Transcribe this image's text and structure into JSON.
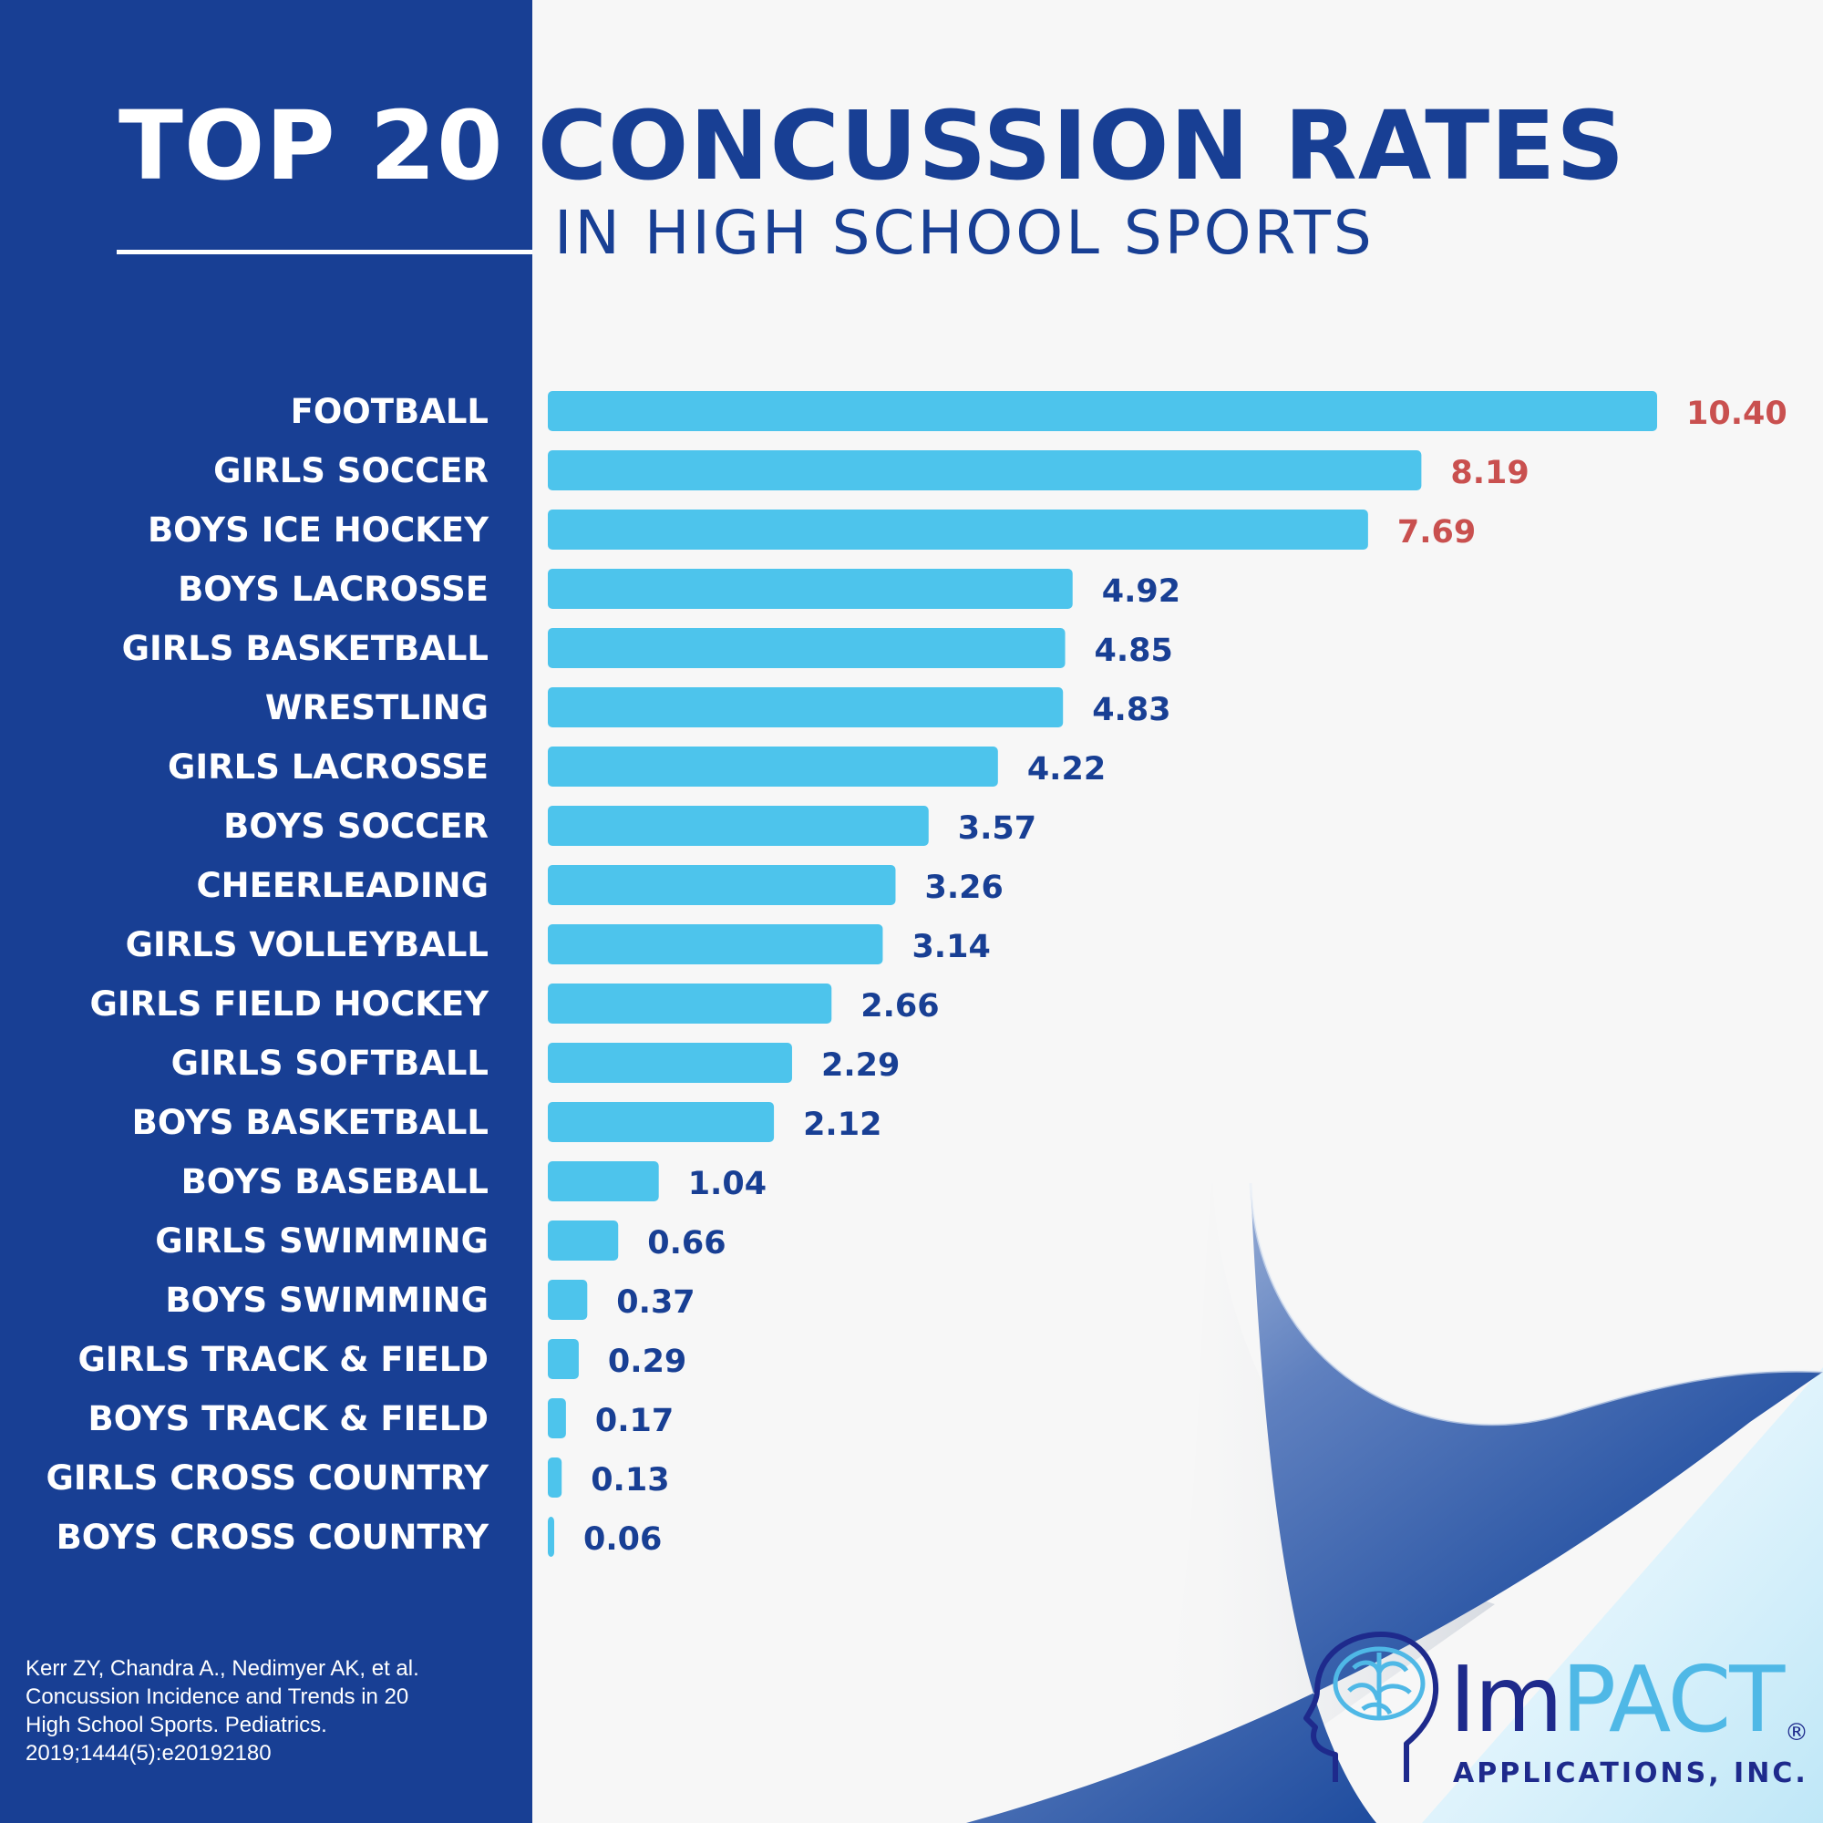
{
  "header": {
    "title_part1": "TOP 20",
    "title_part2": "CONCUSSION RATES",
    "subtitle": "IN HIGH SCHOOL SPORTS"
  },
  "chart_data": {
    "type": "bar",
    "orientation": "horizontal",
    "title": "TOP 20 CONCUSSION RATES IN HIGH SCHOOL SPORTS",
    "xlabel": "",
    "ylabel": "",
    "xlim": [
      0,
      10.4
    ],
    "grid": false,
    "categories": [
      "FOOTBALL",
      "GIRLS SOCCER",
      "BOYS ICE HOCKEY",
      "BOYS LACROSSE",
      "GIRLS BASKETBALL",
      "WRESTLING",
      "GIRLS LACROSSE",
      "BOYS SOCCER",
      "CHEERLEADING",
      "GIRLS VOLLEYBALL",
      "GIRLS FIELD HOCKEY",
      "GIRLS SOFTBALL",
      "BOYS BASKETBALL",
      "BOYS BASEBALL",
      "GIRLS SWIMMING",
      "BOYS SWIMMING",
      "GIRLS TRACK & FIELD",
      "BOYS TRACK & FIELD",
      "GIRLS CROSS COUNTRY",
      "BOYS CROSS COUNTRY"
    ],
    "values": [
      10.4,
      8.19,
      7.69,
      4.92,
      4.85,
      4.83,
      4.22,
      3.57,
      3.26,
      3.14,
      2.66,
      2.29,
      2.12,
      1.04,
      0.66,
      0.37,
      0.29,
      0.17,
      0.13,
      0.06
    ],
    "value_labels": [
      "10.40",
      "8.19",
      "7.69",
      "4.92",
      "4.85",
      "4.83",
      "4.22",
      "3.57",
      "3.26",
      "3.14",
      "2.66",
      "2.29",
      "2.12",
      "1.04",
      "0.66",
      "0.37",
      "0.29",
      "0.17",
      "0.13",
      "0.06"
    ],
    "highlight_top": 3
  },
  "colors": {
    "panel_blue": "#183f94",
    "bar": "#4dc4ec",
    "highlight_value": "#c9504f",
    "value": "#183f94",
    "logo_dark": "#1e2a8c",
    "logo_light": "#4fb8e6"
  },
  "citation": {
    "lines": [
      "Kerr ZY, Chandra A., Nedimyer AK, et al.",
      "Concussion Incidence and Trends in 20",
      "High School Sports. Pediatrics.",
      "2019;1444(5):e20192180"
    ]
  },
  "logo": {
    "word_part1": "Im",
    "word_part2": "PACT",
    "registered": "®",
    "subtitle": "APPLICATIONS, INC.",
    "icon": "head-brain-icon"
  }
}
